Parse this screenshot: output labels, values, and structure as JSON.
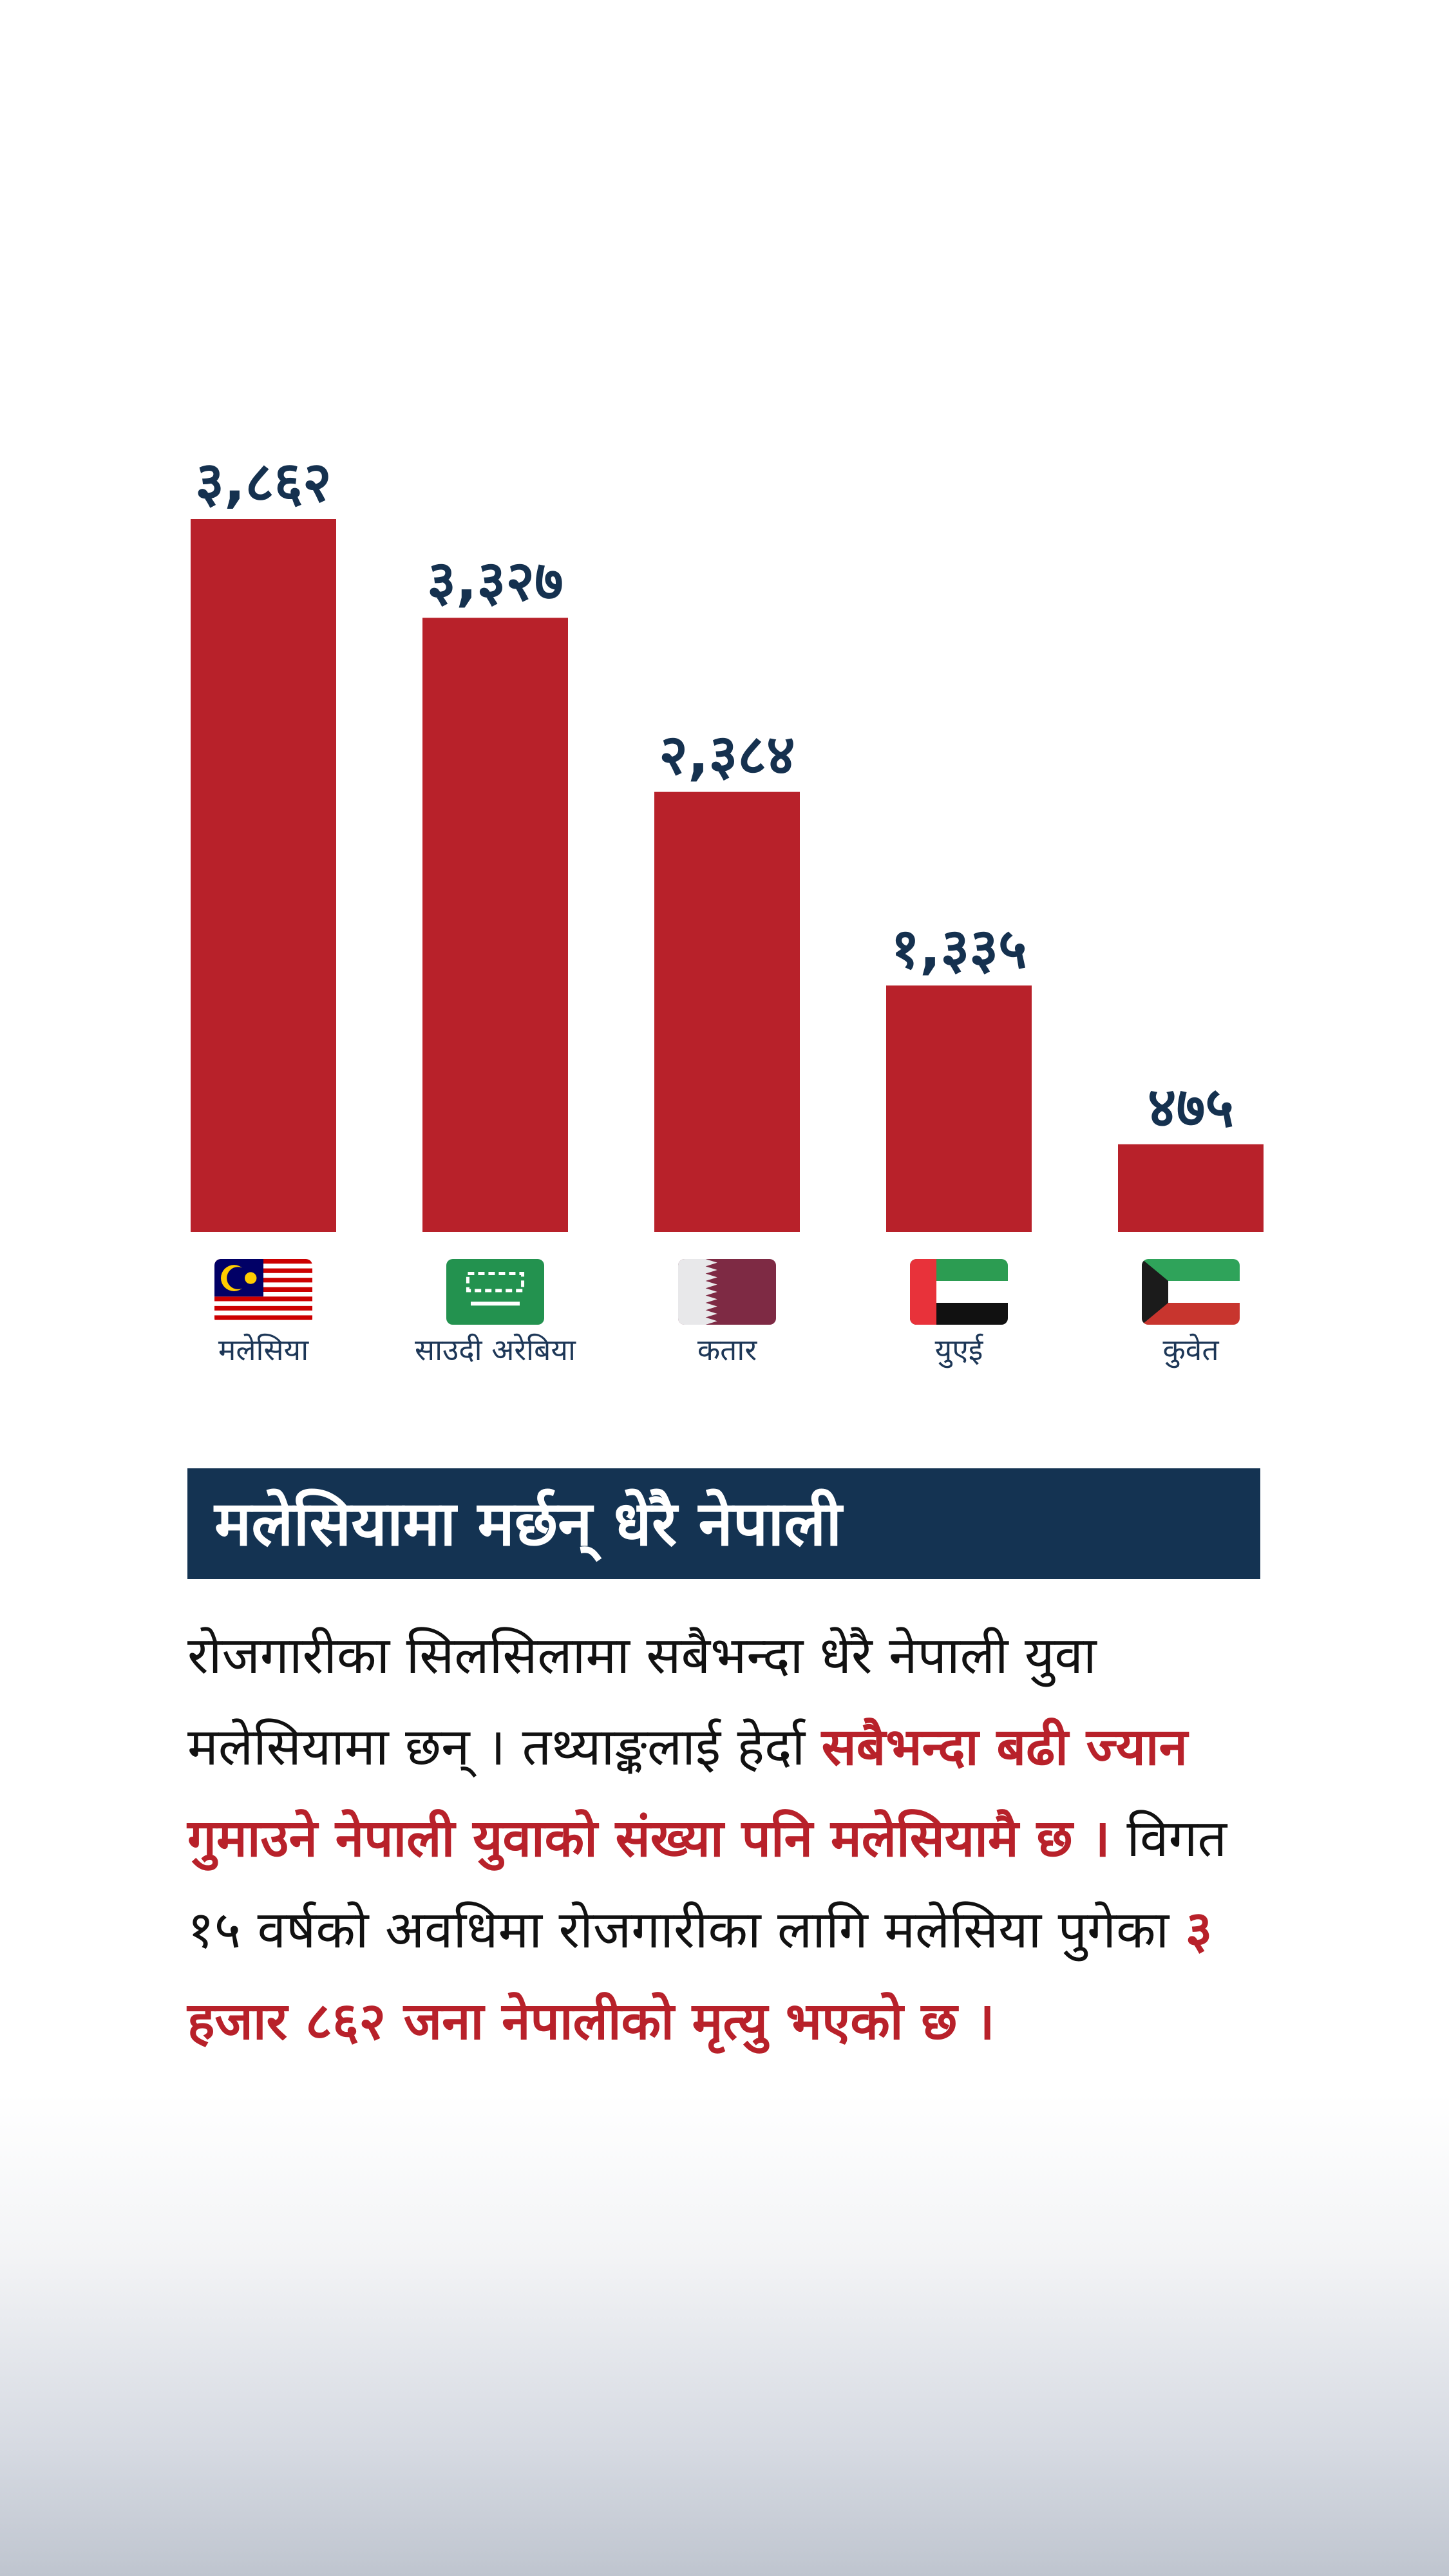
{
  "chart_data": {
    "type": "bar",
    "categories": [
      "मलेसिया",
      "साउदी अरेबिया",
      "कतार",
      "युएई",
      "कुवेत"
    ],
    "values": [
      3862,
      3327,
      2384,
      1335,
      475
    ],
    "value_labels": [
      "३,८६२",
      "३,३२७",
      "२,३८४",
      "१,३३५",
      "४७५"
    ],
    "flags": [
      "malaysia-flag-icon",
      "saudi-arabia-flag-icon",
      "qatar-flag-icon",
      "uae-flag-icon",
      "kuwait-flag-icon"
    ],
    "ylim": [
      0,
      3862
    ],
    "grid": false,
    "bar_color": "#b8212a",
    "label_color": "#15314f"
  },
  "headline": "मलेसियामा मर्छन् धेरै नेपाली",
  "body": {
    "p1": "रोजगारीका सिलसिलामा सबैभन्दा धेरै नेपाली युवा मलेसियामा छन् । तथ्याङ्कलाई हेर्दा ",
    "h1": "सबैभन्दा बढी ज्यान गुमाउने नेपाली युवाको संख्या पनि मलेसियामै छ ।",
    "p2": " विगत १५ वर्षको अवधिमा रोजगारीका लागि मलेसिया पुगेका ",
    "h2": "३ हजार ८६२ जना नेपालीको मृत्यु भएको छ ।"
  },
  "colors": {
    "accent": "#b8212a",
    "navy": "#143352"
  }
}
